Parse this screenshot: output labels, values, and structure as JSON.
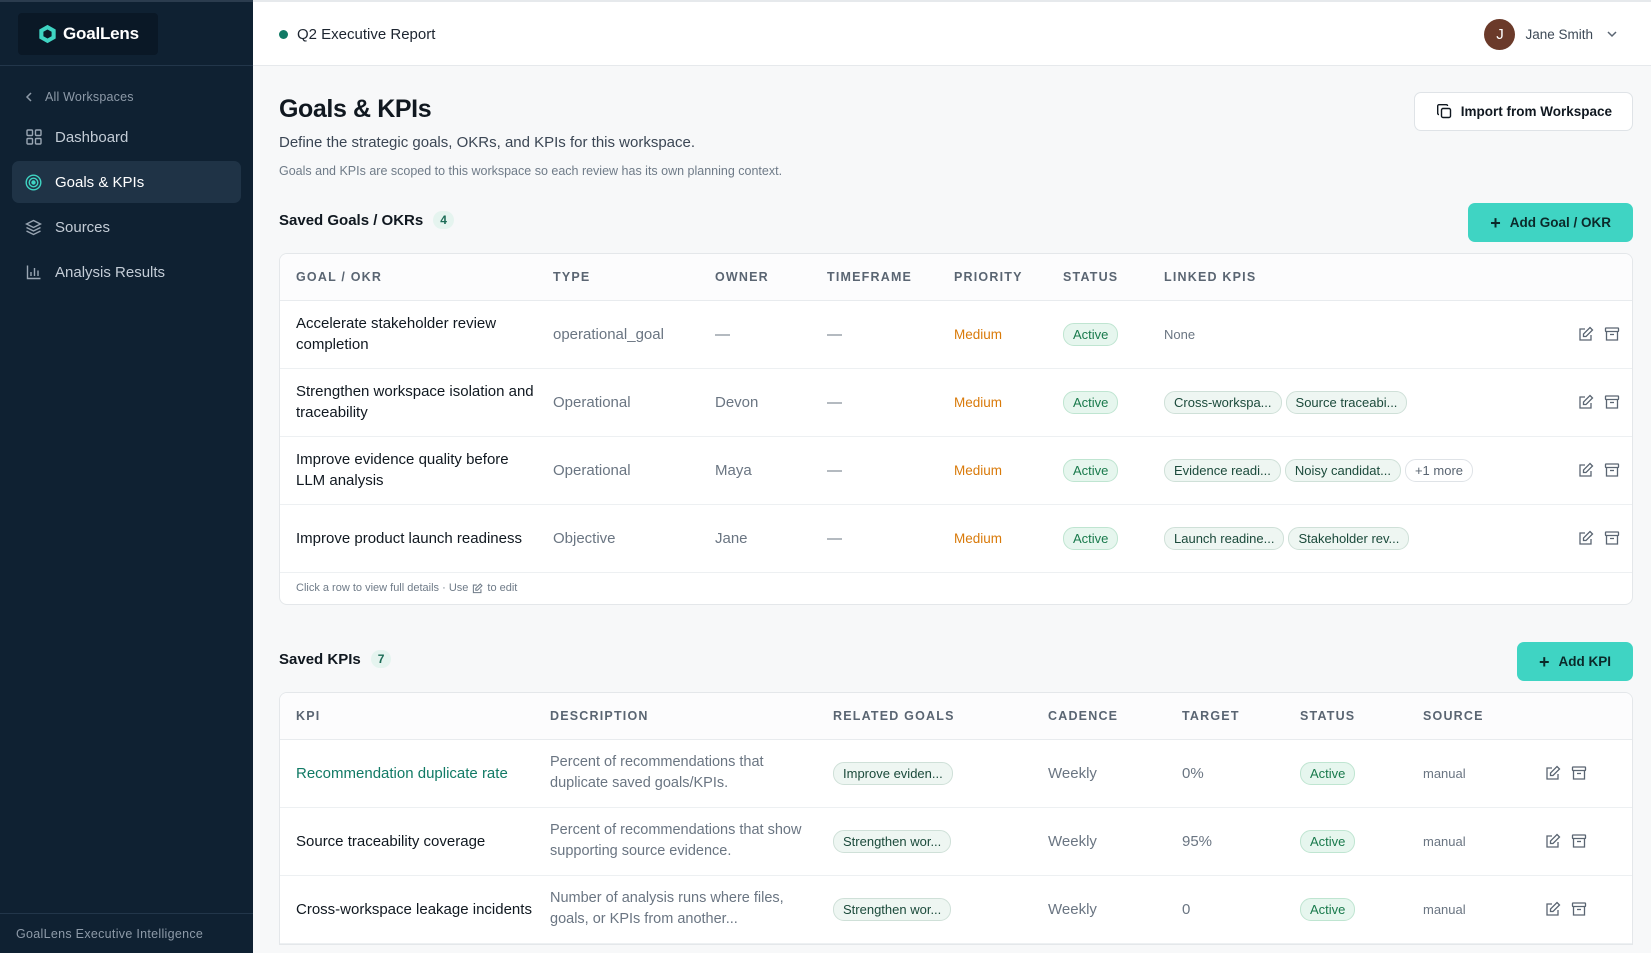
{
  "sidebar": {
    "brand": "GoalLens",
    "back_label": "All Workspaces",
    "items": [
      {
        "label": "Dashboard",
        "icon": "grid-icon"
      },
      {
        "label": "Goals & KPIs",
        "icon": "target-icon"
      },
      {
        "label": "Sources",
        "icon": "layers-icon"
      },
      {
        "label": "Analysis Results",
        "icon": "bar-chart-icon"
      }
    ],
    "active_index": 1,
    "footer": "GoalLens Executive Intelligence"
  },
  "topbar": {
    "workspace_name": "Q2 Executive Report",
    "user_initial": "J",
    "user_name": "Jane Smith"
  },
  "page": {
    "title": "Goals & KPIs",
    "subtitle": "Define the strategic goals, OKRs, and KPIs for this workspace.",
    "note": "Goals and KPIs are scoped to this workspace so each review has its own planning context.",
    "import_label": "Import from Workspace"
  },
  "goals": {
    "heading": "Saved Goals / OKRs",
    "count": "4",
    "add_label": "Add Goal / OKR",
    "columns": [
      "Goal / OKR",
      "Type",
      "Owner",
      "Timeframe",
      "Priority",
      "Status",
      "Linked KPIs"
    ],
    "rows": [
      {
        "name": "Accelerate stakeholder review completion",
        "type": "operational_goal",
        "owner": "—",
        "timeframe": "—",
        "priority": "Medium",
        "status": "Active",
        "linked_none": "None",
        "kpis": []
      },
      {
        "name": "Strengthen workspace isolation and traceability",
        "type": "Operational",
        "owner": "Devon",
        "timeframe": "—",
        "priority": "Medium",
        "status": "Active",
        "kpis": [
          "Cross-workspa...",
          "Source traceabi..."
        ]
      },
      {
        "name": "Improve evidence quality before LLM analysis",
        "type": "Operational",
        "owner": "Maya",
        "timeframe": "—",
        "priority": "Medium",
        "status": "Active",
        "kpis": [
          "Evidence readi...",
          "Noisy candidat..."
        ],
        "more": "+1 more"
      },
      {
        "name": "Improve product launch readiness",
        "type": "Objective",
        "owner": "Jane",
        "timeframe": "—",
        "priority": "Medium",
        "status": "Active",
        "kpis": [
          "Launch readine...",
          "Stakeholder rev..."
        ]
      }
    ],
    "footer_before": "Click a row to view full details · Use",
    "footer_after": "to edit"
  },
  "kpis": {
    "heading": "Saved KPIs",
    "count": "7",
    "add_label": "Add KPI",
    "columns": [
      "KPI",
      "Description",
      "Related Goals",
      "Cadence",
      "Target",
      "Status",
      "Source"
    ],
    "rows": [
      {
        "name": "Recommendation duplicate rate",
        "description": "Percent of recommendations that duplicate saved goals/KPIs.",
        "goal": "Improve eviden...",
        "cadence": "Weekly",
        "target": "0%",
        "status": "Active",
        "source": "manual"
      },
      {
        "name": "Source traceability coverage",
        "description": "Percent of recommendations that show supporting source evidence.",
        "goal": "Strengthen wor...",
        "cadence": "Weekly",
        "target": "95%",
        "status": "Active",
        "source": "manual"
      },
      {
        "name": "Cross-workspace leakage incidents",
        "description": "Number of analysis runs where files, goals, or KPIs from another...",
        "goal": "Strengthen wor...",
        "cadence": "Weekly",
        "target": "0",
        "status": "Active",
        "source": "manual"
      }
    ]
  },
  "colors": {
    "sidebar_bg": "#0f2132",
    "accent": "#3fd4c3",
    "brand_green": "#117a65",
    "priority_medium": "#d97a0a",
    "status_active": "#197a4c"
  }
}
